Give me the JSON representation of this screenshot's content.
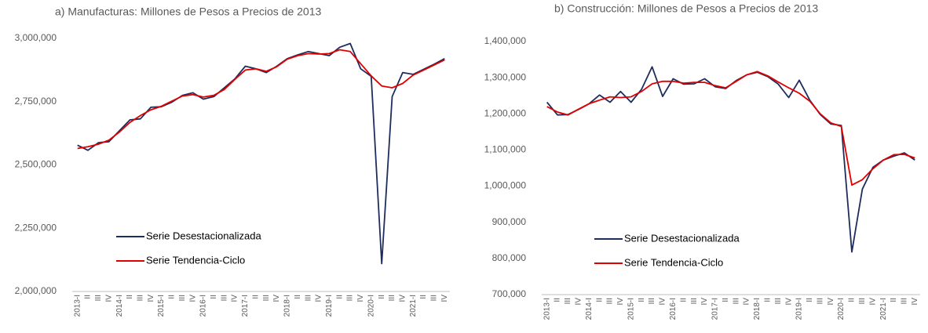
{
  "chart_data": [
    {
      "type": "line",
      "title": "a) Manufacturas: Millones de Pesos a Precios de 2013",
      "categories": [
        "2013-I",
        "II",
        "III",
        "IV",
        "2014-I",
        "II",
        "III",
        "IV",
        "2015-I",
        "II",
        "III",
        "IV",
        "2016-I",
        "II",
        "III",
        "IV",
        "2017-I",
        "II",
        "III",
        "IV",
        "2018-I",
        "II",
        "III",
        "IV",
        "2019-I",
        "II",
        "III",
        "IV",
        "2020-I",
        "II",
        "III",
        "IV",
        "2021-I",
        "II",
        "III",
        "IV"
      ],
      "series": [
        {
          "name": "Serie Desestacionalizada",
          "color": "#1f2d5c",
          "values": [
            2578000,
            2558000,
            2588000,
            2592000,
            2635000,
            2678000,
            2682000,
            2728000,
            2730000,
            2748000,
            2775000,
            2785000,
            2760000,
            2770000,
            2805000,
            2840000,
            2890000,
            2880000,
            2865000,
            2890000,
            2920000,
            2935000,
            2948000,
            2940000,
            2932000,
            2965000,
            2980000,
            2880000,
            2850000,
            2110000,
            2770000,
            2865000,
            2858000,
            2878000,
            2898000,
            2920000
          ]
        },
        {
          "name": "Serie Tendencia-Ciclo",
          "color": "#e00000",
          "values": [
            2565000,
            2572000,
            2582000,
            2598000,
            2630000,
            2668000,
            2695000,
            2718000,
            2732000,
            2752000,
            2772000,
            2778000,
            2768000,
            2775000,
            2798000,
            2838000,
            2875000,
            2880000,
            2870000,
            2888000,
            2918000,
            2932000,
            2940000,
            2938000,
            2940000,
            2955000,
            2948000,
            2900000,
            2852000,
            2812000,
            2805000,
            2822000,
            2855000,
            2875000,
            2895000,
            2915000
          ]
        }
      ],
      "ylim": [
        2000000,
        3000000
      ],
      "yticks": [
        {
          "value": 2000000,
          "label": "2,000,000"
        },
        {
          "value": 2250000,
          "label": "2,250,000"
        },
        {
          "value": 2500000,
          "label": "2,500,000"
        },
        {
          "value": 2750000,
          "label": "2,750,000"
        },
        {
          "value": 3000000,
          "label": "3,000,000"
        }
      ],
      "grid": false,
      "legend": "lower left"
    },
    {
      "type": "line",
      "title": "b) Construcción: Millones de Pesos a Precios de 2013",
      "categories": [
        "2013-I",
        "II",
        "III",
        "IV",
        "2014-I",
        "II",
        "III",
        "IV",
        "2015-I",
        "II",
        "III",
        "IV",
        "2016-I",
        "II",
        "III",
        "IV",
        "2017-I",
        "II",
        "III",
        "IV",
        "2018-I",
        "II",
        "III",
        "IV",
        "2019-I",
        "II",
        "III",
        "IV",
        "2020-I",
        "II",
        "III",
        "IV",
        "2021-I",
        "II",
        "III",
        "IV"
      ],
      "series": [
        {
          "name": "Serie Desestacionalizada",
          "color": "#1f2d5c",
          "values": [
            1232000,
            1197000,
            1198000,
            1212000,
            1228000,
            1252000,
            1232000,
            1262000,
            1232000,
            1268000,
            1330000,
            1248000,
            1297000,
            1282000,
            1283000,
            1297000,
            1275000,
            1270000,
            1292000,
            1308000,
            1315000,
            1303000,
            1282000,
            1245000,
            1293000,
            1238000,
            1198000,
            1172000,
            1168000,
            818000,
            992000,
            1052000,
            1072000,
            1083000,
            1092000,
            1072000
          ]
        },
        {
          "name": "Serie Tendencia-Ciclo",
          "color": "#e00000",
          "values": [
            1220000,
            1205000,
            1197000,
            1213000,
            1228000,
            1238000,
            1247000,
            1245000,
            1247000,
            1262000,
            1283000,
            1290000,
            1290000,
            1285000,
            1287000,
            1287000,
            1278000,
            1272000,
            1290000,
            1308000,
            1317000,
            1305000,
            1288000,
            1272000,
            1257000,
            1235000,
            1200000,
            1175000,
            1165000,
            1003000,
            1018000,
            1048000,
            1072000,
            1087000,
            1088000,
            1078000
          ]
        }
      ],
      "ylim": [
        700000,
        1400000
      ],
      "yticks": [
        {
          "value": 700000,
          "label": "700,000"
        },
        {
          "value": 800000,
          "label": "800,000"
        },
        {
          "value": 900000,
          "label": "900,000"
        },
        {
          "value": 1000000,
          "label": "1,000,000"
        },
        {
          "value": 1100000,
          "label": "1,100,000"
        },
        {
          "value": 1200000,
          "label": "1,200,000"
        },
        {
          "value": 1300000,
          "label": "1,300,000"
        },
        {
          "value": 1400000,
          "label": "1,400,000"
        }
      ],
      "grid": false,
      "legend": "lower left"
    }
  ]
}
